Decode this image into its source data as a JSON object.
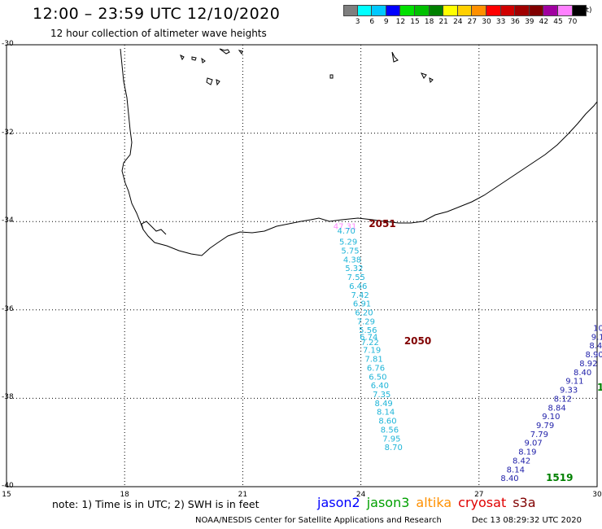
{
  "header": {
    "title": "12:00 – 23:59 UTC 12/10/2020",
    "subtitle": "12 hour collection of altimeter wave heights"
  },
  "legend": {
    "colors": [
      "#7f7f7f",
      "#00ffff",
      "#00c8ff",
      "#0000ff",
      "#00e000",
      "#00c000",
      "#008000",
      "#ffff00",
      "#ffd000",
      "#ff9000",
      "#ff0000",
      "#d00000",
      "#a00000",
      "#800000",
      "#a000a0",
      "#ff80ff",
      "#000000"
    ],
    "labels": [
      "3",
      "6",
      "9",
      "12",
      "15",
      "18",
      "21",
      "24",
      "27",
      "30",
      "33",
      "36",
      "39",
      "42",
      "45",
      "70"
    ],
    "unit": "(ft)"
  },
  "axes": {
    "lat_labels": [
      "-30",
      "-32",
      "-34",
      "-36",
      "-38",
      "-40"
    ],
    "lon_labels": [
      "15",
      "18",
      "21",
      "24",
      "27",
      "30"
    ]
  },
  "chart_data": {
    "type": "scatter",
    "x_range": [
      15,
      30
    ],
    "y_range": [
      -40,
      -30
    ],
    "tracks": [
      {
        "color": "#1fb5d8",
        "points": [
          {
            "lon": 23.3,
            "lat": -34.1,
            "label": "47.31",
            "color": "#ff88ff"
          },
          {
            "lon": 23.4,
            "lat": -34.2,
            "label": "4.70"
          },
          {
            "lon": 23.45,
            "lat": -34.45,
            "label": "5.29"
          },
          {
            "lon": 23.5,
            "lat": -34.65,
            "label": "5.75"
          },
          {
            "lon": 23.55,
            "lat": -34.85,
            "label": "4.38"
          },
          {
            "lon": 23.6,
            "lat": -35.05,
            "label": "5.32"
          },
          {
            "lon": 23.65,
            "lat": -35.25,
            "label": "7.55"
          },
          {
            "lon": 23.7,
            "lat": -35.45,
            "label": "6.46"
          },
          {
            "lon": 23.75,
            "lat": -35.65,
            "label": "7.42"
          },
          {
            "lon": 23.8,
            "lat": -35.85,
            "label": "6.91"
          },
          {
            "lon": 23.85,
            "lat": -36.05,
            "label": "6.20"
          },
          {
            "lon": 23.9,
            "lat": -36.25,
            "label": "7.29"
          },
          {
            "lon": 23.95,
            "lat": -36.45,
            "label": "5.56"
          },
          {
            "lon": 23.97,
            "lat": -36.6,
            "label": "6.74"
          },
          {
            "lon": 24.0,
            "lat": -36.72,
            "label": "7.22"
          },
          {
            "lon": 24.05,
            "lat": -36.9,
            "label": "7.19"
          },
          {
            "lon": 24.1,
            "lat": -37.1,
            "label": "7.81"
          },
          {
            "lon": 24.15,
            "lat": -37.3,
            "label": "6.76"
          },
          {
            "lon": 24.2,
            "lat": -37.5,
            "label": "6.50"
          },
          {
            "lon": 24.25,
            "lat": -37.7,
            "label": "6.40"
          },
          {
            "lon": 24.3,
            "lat": -37.9,
            "label": "7.35"
          },
          {
            "lon": 24.35,
            "lat": -38.1,
            "label": "8.49"
          },
          {
            "lon": 24.4,
            "lat": -38.3,
            "label": "8.14"
          },
          {
            "lon": 24.45,
            "lat": -38.5,
            "label": "8.60"
          },
          {
            "lon": 24.5,
            "lat": -38.7,
            "label": "8.56"
          },
          {
            "lon": 24.55,
            "lat": -38.9,
            "label": "7.95"
          },
          {
            "lon": 24.6,
            "lat": -39.1,
            "label": "8.70"
          }
        ],
        "time_labels": [
          {
            "lon": 24.2,
            "lat": -34.05,
            "label": "2051",
            "color": "#800000"
          },
          {
            "lon": 25.1,
            "lat": -36.7,
            "label": "2050",
            "color": "#800000"
          }
        ]
      },
      {
        "color": "#2222aa",
        "points": [
          {
            "lon": 29.9,
            "lat": -36.4,
            "label": "10"
          },
          {
            "lon": 29.85,
            "lat": -36.6,
            "label": "9.1"
          },
          {
            "lon": 29.8,
            "lat": -36.8,
            "label": "8.4"
          },
          {
            "lon": 29.7,
            "lat": -37.0,
            "label": "8.90"
          },
          {
            "lon": 29.55,
            "lat": -37.2,
            "label": "8.92"
          },
          {
            "lon": 29.4,
            "lat": -37.4,
            "label": "8.40"
          },
          {
            "lon": 29.2,
            "lat": -37.6,
            "label": "9.11"
          },
          {
            "lon": 29.05,
            "lat": -37.8,
            "label": "9.33"
          },
          {
            "lon": 28.9,
            "lat": -38.0,
            "label": "8.12"
          },
          {
            "lon": 28.75,
            "lat": -38.2,
            "label": "8.84"
          },
          {
            "lon": 28.6,
            "lat": -38.4,
            "label": "9.10"
          },
          {
            "lon": 28.45,
            "lat": -38.6,
            "label": "9.79"
          },
          {
            "lon": 28.3,
            "lat": -38.8,
            "label": "7.79"
          },
          {
            "lon": 28.15,
            "lat": -39.0,
            "label": "9.07"
          },
          {
            "lon": 28.0,
            "lat": -39.2,
            "label": "8.19"
          },
          {
            "lon": 27.85,
            "lat": -39.4,
            "label": "8.42"
          },
          {
            "lon": 27.7,
            "lat": -39.6,
            "label": "8.14"
          },
          {
            "lon": 27.55,
            "lat": -39.8,
            "label": "8.40"
          }
        ],
        "time_labels": [
          {
            "lon": 28.7,
            "lat": -39.8,
            "label": "1519",
            "color": "#008000"
          },
          {
            "lon": 30.0,
            "lat": -37.75,
            "label": "1",
            "color": "#008000"
          }
        ]
      }
    ]
  },
  "footer": {
    "note": "note: 1) Time is in UTC; 2) SWH is in feet",
    "satellites": [
      {
        "name": "jason2",
        "color": "#0000ff"
      },
      {
        "name": "jason3",
        "color": "#00a000"
      },
      {
        "name": "altika",
        "color": "#ff9000"
      },
      {
        "name": "cryosat",
        "color": "#e00000"
      },
      {
        "name": "s3a",
        "color": "#800000"
      }
    ],
    "credit": "NOAA/NESDIS Center for Satellite Applications and Research",
    "timestamp": "Dec 13 08:29:32 UTC 2020"
  }
}
